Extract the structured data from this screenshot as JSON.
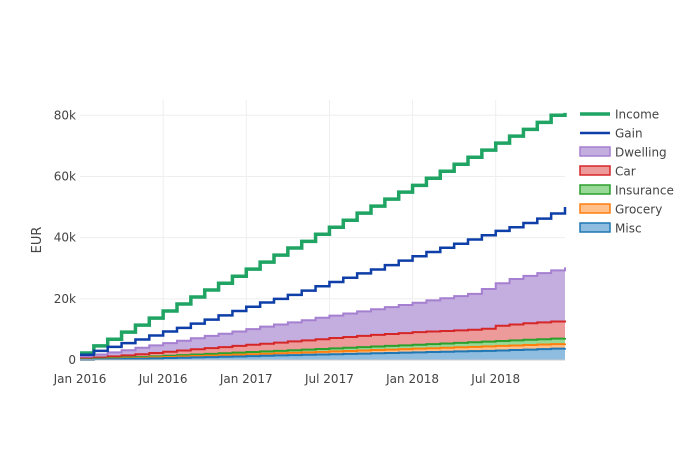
{
  "chart_data": {
    "type": "area",
    "title": "",
    "xlabel": "",
    "ylabel": "EUR",
    "x_tick_labels": [
      "Jan 2016",
      "Jul 2016",
      "Jan 2017",
      "Jul 2017",
      "Jan 2018",
      "Jul 2018"
    ],
    "y_tick_labels": [
      "0",
      "20k",
      "40k",
      "60k",
      "80k"
    ],
    "y_ticks": [
      0,
      20000,
      40000,
      60000,
      80000
    ],
    "xlim": [
      "2016-01",
      "2018-12"
    ],
    "ylim": [
      0,
      85000
    ],
    "grid": true,
    "legend_position": "right",
    "x_months": [
      "2016-01",
      "2016-02",
      "2016-03",
      "2016-04",
      "2016-05",
      "2016-06",
      "2016-07",
      "2016-08",
      "2016-09",
      "2016-10",
      "2016-11",
      "2016-12",
      "2017-01",
      "2017-02",
      "2017-03",
      "2017-04",
      "2017-05",
      "2017-06",
      "2017-07",
      "2017-08",
      "2017-09",
      "2017-10",
      "2017-11",
      "2017-12",
      "2018-01",
      "2018-02",
      "2018-03",
      "2018-04",
      "2018-05",
      "2018-06",
      "2018-07",
      "2018-08",
      "2018-09",
      "2018-10",
      "2018-11",
      "2018-12"
    ],
    "lines": [
      {
        "name": "Income",
        "color": "#1fa463",
        "values": [
          2300,
          4600,
          6800,
          9100,
          11400,
          13700,
          16000,
          18300,
          20600,
          22900,
          25100,
          27400,
          29700,
          32000,
          34300,
          36600,
          38800,
          41100,
          43400,
          45700,
          48000,
          50300,
          52600,
          54900,
          57100,
          59400,
          61700,
          64000,
          66300,
          68600,
          70900,
          73200,
          75400,
          77700,
          80000,
          80800
        ]
      },
      {
        "name": "Gain",
        "color": "#0e3fa8",
        "values": [
          1700,
          3000,
          4300,
          5500,
          6700,
          8000,
          9300,
          10500,
          11900,
          13200,
          14600,
          16000,
          17400,
          18800,
          20000,
          21300,
          22700,
          24100,
          25500,
          26900,
          28300,
          29600,
          31000,
          32500,
          33900,
          35300,
          36700,
          38000,
          39400,
          40800,
          42200,
          43400,
          44800,
          46200,
          47900,
          50000
        ]
      }
    ],
    "stacked_series": [
      {
        "name": "Dwelling",
        "line_color": "#a57fd0",
        "fill_color": "#c4aee0",
        "values": [
          1100,
          1800,
          2500,
          3200,
          4000,
          4800,
          5500,
          6300,
          7100,
          7900,
          8600,
          9300,
          10100,
          10900,
          11600,
          12300,
          13000,
          13800,
          14500,
          15200,
          15900,
          16600,
          17300,
          18000,
          18700,
          19500,
          20200,
          20900,
          21600,
          23200,
          25100,
          26500,
          27500,
          28400,
          29300,
          30300
        ]
      },
      {
        "name": "Car",
        "line_color": "#d62728",
        "fill_color": "#ec9a9a",
        "values": [
          500,
          800,
          1200,
          1500,
          1900,
          2300,
          2700,
          3100,
          3500,
          3900,
          4200,
          4600,
          5000,
          5300,
          5700,
          6100,
          6400,
          6800,
          7200,
          7500,
          7900,
          8200,
          8500,
          8800,
          9100,
          9300,
          9500,
          9700,
          9900,
          10200,
          11200,
          11600,
          12000,
          12300,
          12600,
          12900
        ]
      },
      {
        "name": "Insurance",
        "line_color": "#2ca02c",
        "fill_color": "#98d998",
        "values": [
          200,
          400,
          600,
          800,
          1000,
          1200,
          1400,
          1600,
          1800,
          2000,
          2200,
          2400,
          2600,
          2800,
          3000,
          3200,
          3400,
          3600,
          3800,
          4000,
          4200,
          4400,
          4600,
          4800,
          5000,
          5200,
          5400,
          5600,
          5800,
          6000,
          6200,
          6400,
          6600,
          6800,
          7000,
          7200
        ]
      },
      {
        "name": "Grocery",
        "line_color": "#ff7f0e",
        "fill_color": "#ffc08c",
        "values": [
          100,
          250,
          400,
          550,
          700,
          850,
          1000,
          1150,
          1300,
          1450,
          1600,
          1750,
          1900,
          2050,
          2200,
          2350,
          2500,
          2650,
          2800,
          2950,
          3100,
          3250,
          3400,
          3550,
          3700,
          3850,
          4000,
          4150,
          4300,
          4450,
          4600,
          4750,
          4900,
          5050,
          5200,
          5350
        ]
      },
      {
        "name": "Misc",
        "line_color": "#1f77b4",
        "fill_color": "#8fbde0",
        "values": [
          50,
          150,
          250,
          350,
          450,
          550,
          650,
          750,
          850,
          950,
          1050,
          1150,
          1250,
          1400,
          1500,
          1600,
          1700,
          1800,
          1900,
          2000,
          2100,
          2200,
          2300,
          2400,
          2500,
          2600,
          2700,
          2800,
          2900,
          3000,
          3100,
          3250,
          3400,
          3550,
          3700,
          3900
        ]
      }
    ],
    "legend_order": [
      "Income",
      "Gain",
      "Dwelling",
      "Car",
      "Insurance",
      "Grocery",
      "Misc"
    ]
  }
}
